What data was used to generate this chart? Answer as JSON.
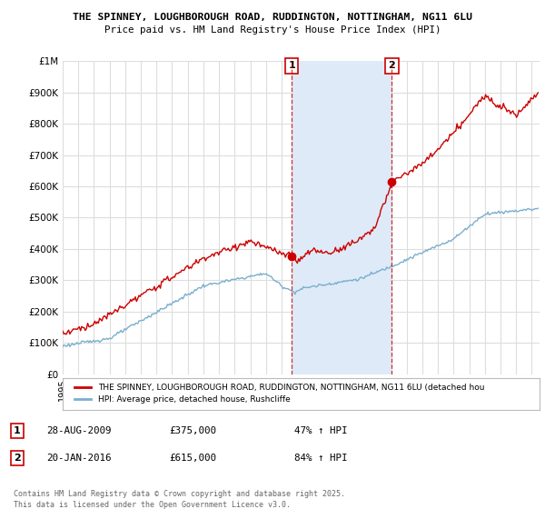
{
  "title_line1": "THE SPINNEY, LOUGHBOROUGH ROAD, RUDDINGTON, NOTTINGHAM, NG11 6LU",
  "title_line2": "Price paid vs. HM Land Registry's House Price Index (HPI)",
  "background_color": "#ffffff",
  "plot_bg_color": "#ffffff",
  "grid_color": "#dddddd",
  "shaded_region_color": "#deeaf7",
  "red_color": "#cc0000",
  "blue_color": "#7aafce",
  "ylim": [
    0,
    1000000
  ],
  "yticks": [
    0,
    100000,
    200000,
    300000,
    400000,
    500000,
    600000,
    700000,
    800000,
    900000,
    1000000
  ],
  "ytick_labels": [
    "£0",
    "£100K",
    "£200K",
    "£300K",
    "£400K",
    "£500K",
    "£600K",
    "£700K",
    "£800K",
    "£900K",
    "£1M"
  ],
  "xlim_start": 1995.0,
  "xlim_end": 2025.5,
  "purchase1_x": 2009.65,
  "purchase1_y": 375000,
  "purchase1_label": "1",
  "purchase2_x": 2016.05,
  "purchase2_y": 615000,
  "purchase2_label": "2",
  "legend_red": "THE SPINNEY, LOUGHBOROUGH ROAD, RUDDINGTON, NOTTINGHAM, NG11 6LU (detached hou",
  "legend_blue": "HPI: Average price, detached house, Rushcliffe",
  "annotation1_date": "28-AUG-2009",
  "annotation1_price": "£375,000",
  "annotation1_hpi": "47% ↑ HPI",
  "annotation2_date": "20-JAN-2016",
  "annotation2_price": "£615,000",
  "annotation2_hpi": "84% ↑ HPI",
  "footer": "Contains HM Land Registry data © Crown copyright and database right 2025.\nThis data is licensed under the Open Government Licence v3.0."
}
